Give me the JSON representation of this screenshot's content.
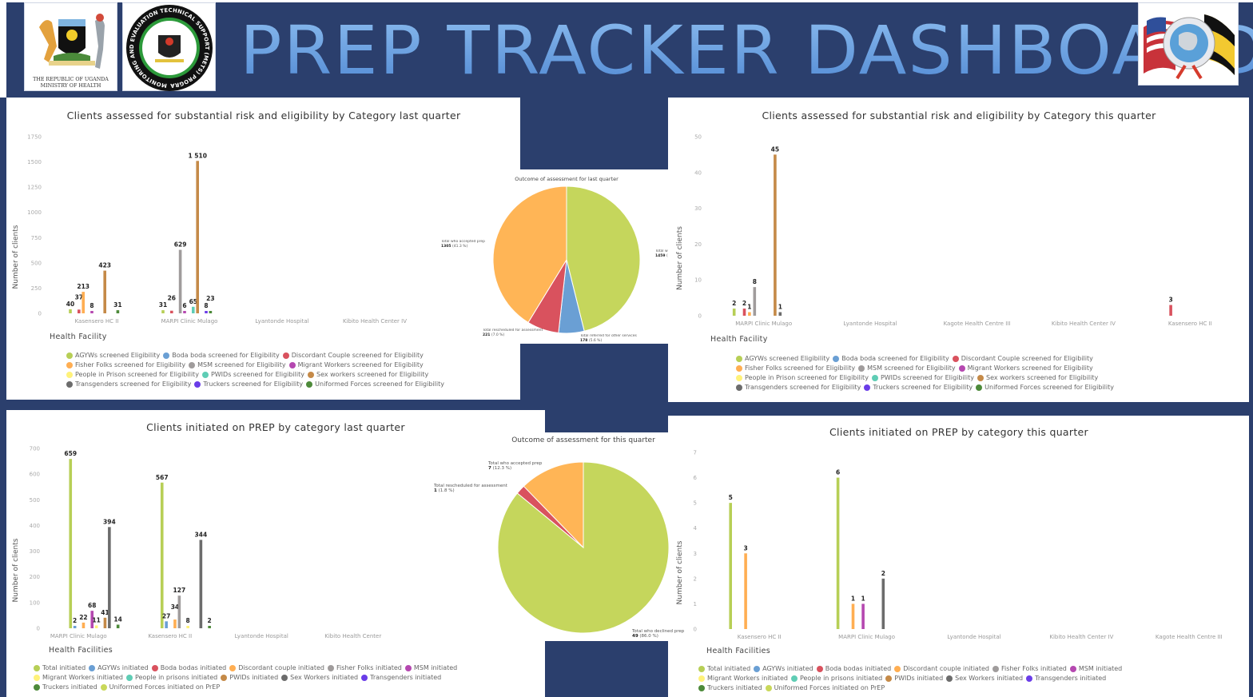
{
  "header": {
    "title": "PREP TRACKER DASHBOARD",
    "moh_logo_text": [
      "THE REPUBLIC OF UGANDA",
      "MINISTRY OF HEALTH"
    ],
    "mets_logo_text": "MONITORING AND EVALUATION TECHNICAL SUPPORT (METS) PROGRAM"
  },
  "chart_data": [
    {
      "type": "bar",
      "title": "Clients assessed for substantial risk and eligibility by Category last quarter",
      "xlabel": "Health Facility",
      "ylabel": "Number of clients",
      "ylim": [
        0,
        1750
      ],
      "ytick_step": 250,
      "categories": [
        "Kasensero HC II",
        "MARPI Clinic Mulago",
        "Lyantonde Hospital",
        "Kibito Health Center IV"
      ],
      "series": [
        {
          "name": "AGYWs screened Eligibility",
          "color": "#b7cf56",
          "values": [
            40,
            31,
            null,
            null
          ]
        },
        {
          "name": "Boda boda screened for Eligibility",
          "color": "#6a9fd4",
          "values": [
            null,
            null,
            null,
            null
          ]
        },
        {
          "name": "Discordant Couple screened for Eligibility",
          "color": "#d9525e",
          "values": [
            37,
            26,
            null,
            null
          ]
        },
        {
          "name": "Fisher Folks screened for Eligibility",
          "color": "#ffae52",
          "values": [
            213,
            null,
            null,
            null
          ]
        },
        {
          "name": "MSM screened for Eligibility",
          "color": "#a09c9c",
          "values": [
            null,
            629,
            null,
            null
          ]
        },
        {
          "name": "Migrant Workers screened for Eligibility",
          "color": "#b548b0",
          "values": [
            8,
            6,
            null,
            null
          ]
        },
        {
          "name": "People in Prison screened for Eligibility",
          "color": "#fff27a",
          "values": [
            null,
            null,
            null,
            null
          ]
        },
        {
          "name": "PWIDs screened for Eligibility",
          "color": "#5fcdb5",
          "values": [
            null,
            65,
            null,
            null
          ]
        },
        {
          "name": "Sex workers screened for Eligibility",
          "color": "#c58a48",
          "values": [
            423,
            1510,
            null,
            null
          ]
        },
        {
          "name": "Transgenders screened for Eligibility",
          "color": "#6c6c6c",
          "values": [
            null,
            null,
            null,
            null
          ]
        },
        {
          "name": "Truckers screened for Eligibility",
          "color": "#6a3de8",
          "values": [
            null,
            8,
            null,
            null
          ]
        },
        {
          "name": "Uniformed Forces screened for Eligibility",
          "color": "#4d8a3a",
          "values": [
            31,
            23,
            null,
            null
          ]
        }
      ]
    },
    {
      "type": "bar",
      "title": "Clients assessed for substantial risk and eligibility by Category this quarter",
      "xlabel": "Health Facility",
      "ylabel": "Number of clients",
      "ylim": [
        0,
        50
      ],
      "ytick_step": 10,
      "categories": [
        "MARPI Clinic Mulago",
        "Lyantonde Hospital",
        "Kagote Health Centre III",
        "Kibito Health Center IV",
        "Kasensero HC II"
      ],
      "series": [
        {
          "name": "AGYWs screened Eligibility",
          "color": "#b7cf56",
          "values": [
            2,
            null,
            null,
            null,
            null
          ]
        },
        {
          "name": "Boda boda screened for Eligibility",
          "color": "#6a9fd4",
          "values": [
            null,
            null,
            null,
            null,
            null
          ]
        },
        {
          "name": "Discordant Couple screened for Eligibility",
          "color": "#d9525e",
          "values": [
            2,
            null,
            null,
            null,
            3
          ]
        },
        {
          "name": "Fisher Folks screened for Eligibility",
          "color": "#ffae52",
          "values": [
            1,
            null,
            null,
            null,
            null
          ]
        },
        {
          "name": "MSM screened for Eligibility",
          "color": "#a09c9c",
          "values": [
            8,
            null,
            null,
            null,
            null
          ]
        },
        {
          "name": "Migrant Workers screened for Eligibility",
          "color": "#b548b0",
          "values": [
            null,
            null,
            null,
            null,
            null
          ]
        },
        {
          "name": "People in Prison screened for Eligibility",
          "color": "#fff27a",
          "values": [
            null,
            null,
            null,
            null,
            null
          ]
        },
        {
          "name": "PWIDs screened for Eligibility",
          "color": "#5fcdb5",
          "values": [
            null,
            null,
            null,
            null,
            null
          ]
        },
        {
          "name": "Sex workers screened for Eligibility",
          "color": "#c58a48",
          "values": [
            45,
            null,
            null,
            null,
            null
          ]
        },
        {
          "name": "Transgenders screened for Eligibility",
          "color": "#6c6c6c",
          "values": [
            1,
            null,
            null,
            null,
            null
          ]
        },
        {
          "name": "Truckers screened for Eligibility",
          "color": "#6a3de8",
          "values": [
            null,
            null,
            null,
            null,
            null
          ]
        },
        {
          "name": "Uniformed Forces screened for Eligibility",
          "color": "#4d8a3a",
          "values": [
            null,
            null,
            null,
            null,
            null
          ]
        }
      ]
    },
    {
      "type": "bar",
      "title": "Clients initiated on PREP by category last quarter",
      "xlabel": "Health Facilities",
      "ylabel": "Number of clients",
      "ylim": [
        0,
        700
      ],
      "ytick_step": 100,
      "categories": [
        "MARPI Clinic Mulago",
        "Kasensero HC II",
        "Lyantonde Hospital",
        "Kibito Health Center"
      ],
      "series": [
        {
          "name": "Total initiated",
          "color": "#b7cf56",
          "values": [
            659,
            567,
            null,
            null
          ]
        },
        {
          "name": "AGYWs initiated",
          "color": "#6a9fd4",
          "values": [
            2,
            27,
            null,
            null
          ]
        },
        {
          "name": "Boda bodas initiated",
          "color": "#d9525e",
          "values": [
            null,
            null,
            null,
            null
          ]
        },
        {
          "name": "Discordant couple initiated",
          "color": "#ffae52",
          "values": [
            22,
            34,
            null,
            null
          ]
        },
        {
          "name": "Fisher Folks initiated",
          "color": "#a09c9c",
          "values": [
            null,
            127,
            null,
            null
          ]
        },
        {
          "name": "MSM initiated",
          "color": "#b548b0",
          "values": [
            68,
            null,
            null,
            null
          ]
        },
        {
          "name": "Migrant Workers initiated",
          "color": "#fff27a",
          "values": [
            11,
            8,
            null,
            null
          ]
        },
        {
          "name": "People in prisons initiated",
          "color": "#5fcdb5",
          "values": [
            null,
            null,
            null,
            null
          ]
        },
        {
          "name": "PWIDs initiated",
          "color": "#c58a48",
          "values": [
            41,
            null,
            null,
            null
          ]
        },
        {
          "name": "Sex Workers initiated",
          "color": "#6c6c6c",
          "values": [
            394,
            344,
            null,
            null
          ]
        },
        {
          "name": "Transgenders initiated",
          "color": "#6a3de8",
          "values": [
            null,
            null,
            null,
            null
          ]
        },
        {
          "name": "Truckers initiated",
          "color": "#4d8a3a",
          "values": [
            14,
            2,
            null,
            null
          ]
        },
        {
          "name": "Uniformed Forces initiated on PrEP",
          "color": "#c9d85a",
          "values": [
            null,
            null,
            null,
            null
          ]
        }
      ]
    },
    {
      "type": "bar",
      "title": "Clients initiated on PREP by category this quarter",
      "xlabel": "Health Facilities",
      "ylabel": "Number of clients",
      "ylim": [
        0,
        7
      ],
      "ytick_step": 1,
      "categories": [
        "Kasensero HC II",
        "MARPI Clinic Mulago",
        "Lyantonde Hospital",
        "Kibito Health Center IV",
        "Kagote Health Centre III"
      ],
      "series": [
        {
          "name": "Total initiated",
          "color": "#b7cf56",
          "values": [
            5,
            6,
            null,
            null,
            null
          ]
        },
        {
          "name": "AGYWs initiated",
          "color": "#6a9fd4",
          "values": [
            null,
            null,
            null,
            null,
            null
          ]
        },
        {
          "name": "Boda bodas initiated",
          "color": "#d9525e",
          "values": [
            null,
            null,
            null,
            null,
            null
          ]
        },
        {
          "name": "Discordant couple initiated",
          "color": "#ffae52",
          "values": [
            3,
            1,
            null,
            null,
            null
          ]
        },
        {
          "name": "Fisher Folks initiated",
          "color": "#a09c9c",
          "values": [
            null,
            null,
            null,
            null,
            null
          ]
        },
        {
          "name": "MSM initiated",
          "color": "#b548b0",
          "values": [
            null,
            1,
            null,
            null,
            null
          ]
        },
        {
          "name": "Migrant Workers initiated",
          "color": "#fff27a",
          "values": [
            null,
            null,
            null,
            null,
            null
          ]
        },
        {
          "name": "People in prisons initiated",
          "color": "#5fcdb5",
          "values": [
            null,
            null,
            null,
            null,
            null
          ]
        },
        {
          "name": "PWIDs initiated",
          "color": "#c58a48",
          "values": [
            null,
            null,
            null,
            null,
            null
          ]
        },
        {
          "name": "Sex Workers initiated",
          "color": "#6c6c6c",
          "values": [
            null,
            2,
            null,
            null,
            null
          ]
        },
        {
          "name": "Transgenders initiated",
          "color": "#6a3de8",
          "values": [
            null,
            null,
            null,
            null,
            null
          ]
        },
        {
          "name": "Truckers initiated",
          "color": "#4d8a3a",
          "values": [
            null,
            null,
            null,
            null,
            null
          ]
        },
        {
          "name": "Uniformed Forces initiated on PrEP",
          "color": "#c9d85a",
          "values": [
            null,
            null,
            null,
            null,
            null
          ]
        }
      ]
    },
    {
      "type": "pie",
      "title": "Outcome of assessment for last quarter",
      "slices": [
        {
          "label": "Total who declined prep",
          "value": 1459,
          "pct": "46.1 %",
          "color": "#c5d65c"
        },
        {
          "label": "Total referred for other services",
          "value": 178,
          "pct": "5.6 %",
          "color": "#6a9fd4"
        },
        {
          "label": "Total rescheduled for assessment",
          "value": 221,
          "pct": "7.0 %",
          "color": "#d9525e"
        },
        {
          "label": "Total who accepted prep",
          "value": 1305,
          "pct": "41.3 %",
          "color": "#ffb556"
        }
      ]
    },
    {
      "type": "pie",
      "title": "Outcome of assessment for this quarter",
      "slices": [
        {
          "label": "Total who declined prep",
          "value": 49,
          "pct": "86.0 %",
          "color": "#c5d65c"
        },
        {
          "label": "Total rescheduled for assessment",
          "value": 1,
          "pct": "1.8 %",
          "color": "#d9525e"
        },
        {
          "label": "Total who accepted prep",
          "value": 7,
          "pct": "12.3 %",
          "color": "#ffb556"
        }
      ]
    }
  ]
}
